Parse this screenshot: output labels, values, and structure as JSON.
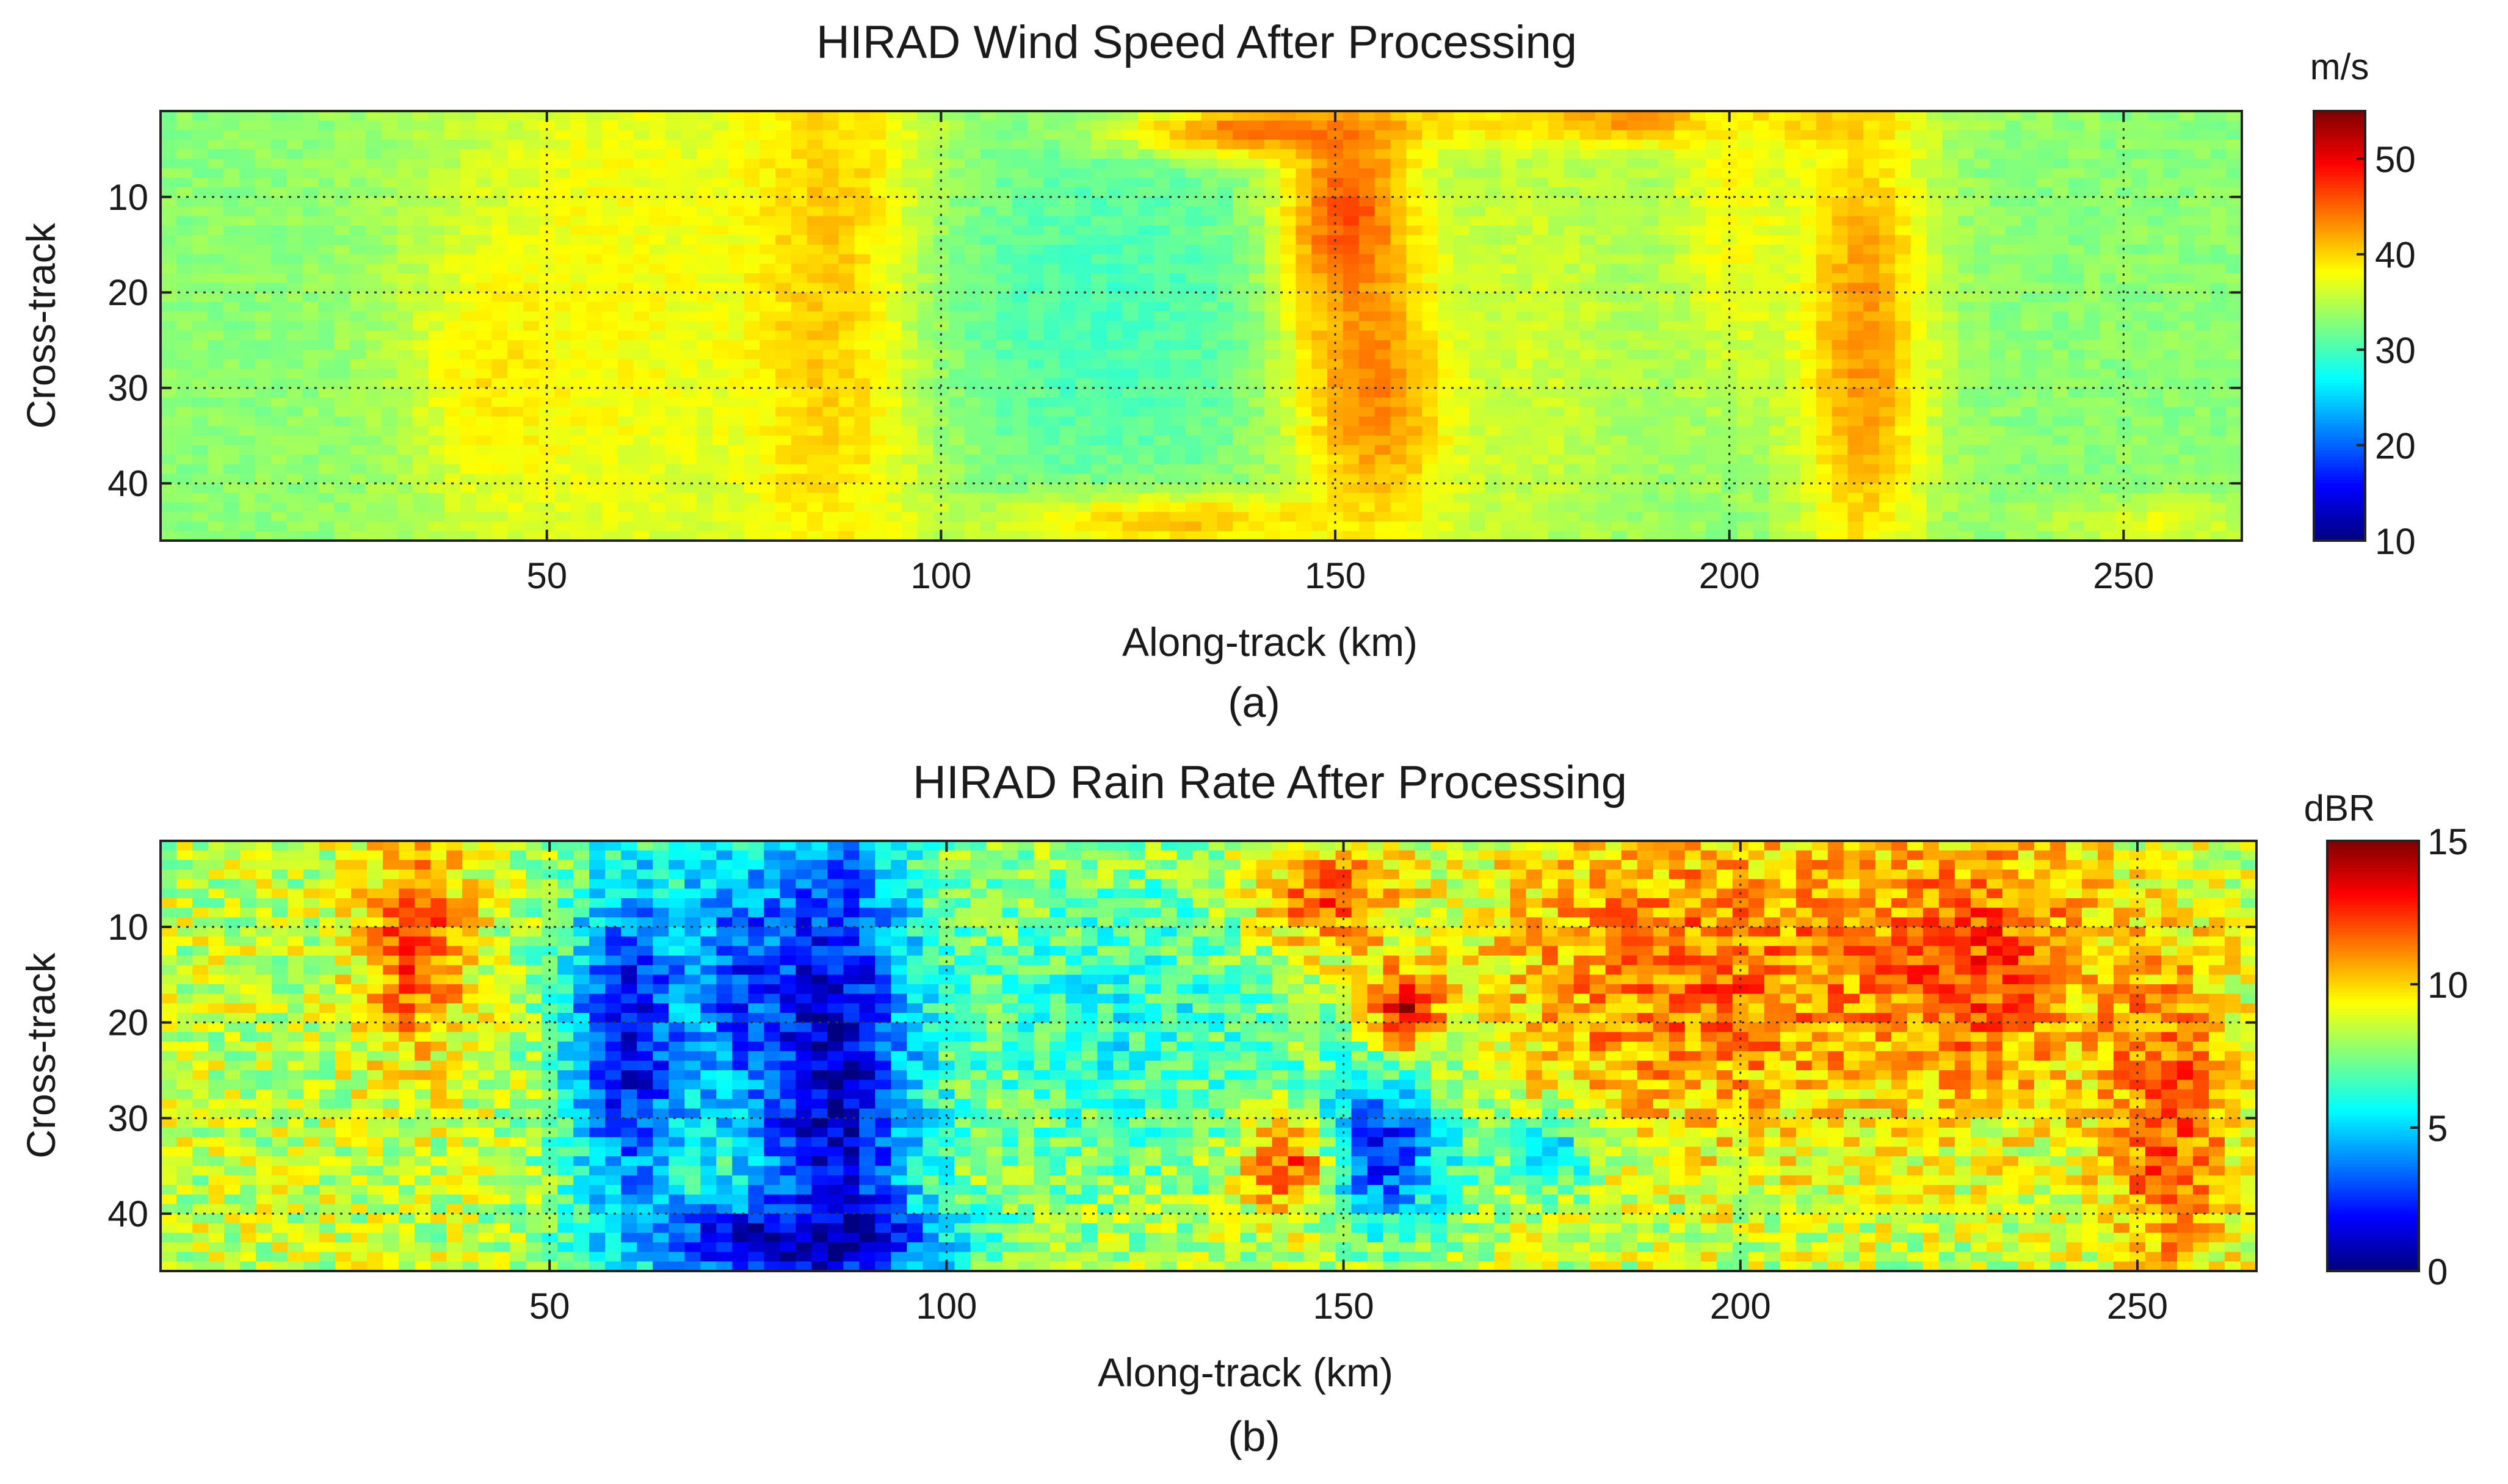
{
  "chart_data": [
    {
      "type": "heatmap",
      "id": "wind",
      "title": "HIRAD Wind Speed After Processing",
      "xlabel": "Along-track (km)",
      "ylabel": "Cross-track",
      "panel_label": "(a)",
      "xlim": [
        1,
        265
      ],
      "ylim": [
        46,
        1
      ],
      "xticks": [
        50,
        100,
        150,
        200,
        250
      ],
      "yticks": [
        10,
        20,
        30,
        40
      ],
      "colorbar": {
        "label": "m/s",
        "min": 10,
        "max": 55,
        "ticks": [
          10,
          20,
          30,
          40,
          50
        ]
      },
      "background_value": 33,
      "grid": true,
      "field_regions": [
        {
          "x": 45,
          "y": 28,
          "value": 41,
          "sx": 7,
          "sy": 9
        },
        {
          "x": 58,
          "y": 20,
          "value": 38,
          "sx": 16,
          "sy": 30
        },
        {
          "x": 87,
          "y": 20,
          "value": 42,
          "sx": 9,
          "sy": 26
        },
        {
          "x": 122,
          "y": 22,
          "value": 30,
          "sx": 18,
          "sy": 14
        },
        {
          "x": 140,
          "y": 3,
          "value": 44,
          "sx": 12,
          "sy": 2
        },
        {
          "x": 152,
          "y": 12,
          "value": 47,
          "sx": 6,
          "sy": 8
        },
        {
          "x": 156,
          "y": 30,
          "value": 45,
          "sx": 8,
          "sy": 12
        },
        {
          "x": 130,
          "y": 44,
          "value": 41,
          "sx": 16,
          "sy": 2
        },
        {
          "x": 185,
          "y": 2,
          "value": 46,
          "sx": 20,
          "sy": 2
        },
        {
          "x": 200,
          "y": 10,
          "value": 38,
          "sx": 6,
          "sy": 14
        },
        {
          "x": 217,
          "y": 25,
          "value": 43,
          "sx": 6,
          "sy": 20
        },
        {
          "x": 175,
          "y": 24,
          "value": 36,
          "sx": 10,
          "sy": 20
        },
        {
          "x": 253,
          "y": 44,
          "value": 40,
          "sx": 8,
          "sy": 2
        },
        {
          "x": 250,
          "y": 20,
          "value": 33,
          "sx": 10,
          "sy": 20
        }
      ]
    },
    {
      "type": "heatmap",
      "id": "rain",
      "title": "HIRAD Rain Rate After Processing",
      "xlabel": "Along-track (km)",
      "ylabel": "Cross-track",
      "panel_label": "(b)",
      "xlim": [
        1,
        265
      ],
      "ylim": [
        46,
        1
      ],
      "xticks": [
        50,
        100,
        150,
        200,
        250
      ],
      "yticks": [
        10,
        20,
        30,
        40
      ],
      "colorbar": {
        "label": "dBR",
        "min": 0,
        "max": 15,
        "ticks": [
          0,
          5,
          10,
          15
        ]
      },
      "background_value": 8.5,
      "grid": true,
      "field_regions": [
        {
          "x": 33,
          "y": 12,
          "value": 12,
          "sx": 5,
          "sy": 8
        },
        {
          "x": 60,
          "y": 22,
          "value": 1.5,
          "sx": 6,
          "sy": 14
        },
        {
          "x": 73,
          "y": 15,
          "value": 3.5,
          "sx": 5,
          "sy": 10
        },
        {
          "x": 86,
          "y": 25,
          "value": 0.5,
          "sx": 8,
          "sy": 22
        },
        {
          "x": 80,
          "y": 43,
          "value": 0.5,
          "sx": 14,
          "sy": 3
        },
        {
          "x": 122,
          "y": 20,
          "value": 6,
          "sx": 16,
          "sy": 12
        },
        {
          "x": 148,
          "y": 7,
          "value": 12,
          "sx": 6,
          "sy": 4
        },
        {
          "x": 158,
          "y": 19,
          "value": 15,
          "sx": 3,
          "sy": 3
        },
        {
          "x": 155,
          "y": 33,
          "value": 2,
          "sx": 7,
          "sy": 6
        },
        {
          "x": 143,
          "y": 35,
          "value": 12,
          "sx": 4,
          "sy": 4
        },
        {
          "x": 195,
          "y": 15,
          "value": 11.5,
          "sx": 20,
          "sy": 12
        },
        {
          "x": 230,
          "y": 14,
          "value": 12,
          "sx": 12,
          "sy": 10
        },
        {
          "x": 254,
          "y": 30,
          "value": 12,
          "sx": 6,
          "sy": 12
        },
        {
          "x": 176,
          "y": 34,
          "value": 5,
          "sx": 4,
          "sy": 3
        }
      ]
    }
  ]
}
